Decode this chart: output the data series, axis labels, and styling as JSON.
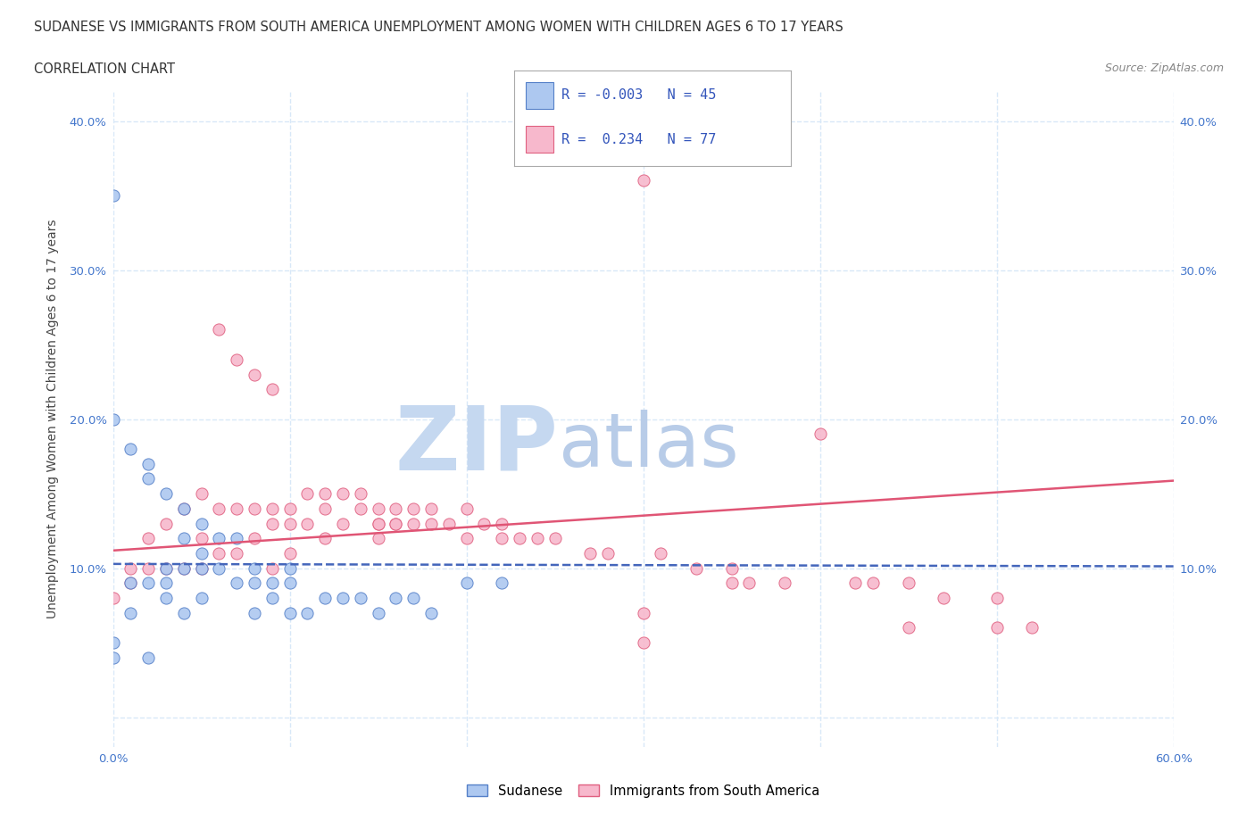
{
  "title": "SUDANESE VS IMMIGRANTS FROM SOUTH AMERICA UNEMPLOYMENT AMONG WOMEN WITH CHILDREN AGES 6 TO 17 YEARS",
  "subtitle": "CORRELATION CHART",
  "source": "Source: ZipAtlas.com",
  "ylabel": "Unemployment Among Women with Children Ages 6 to 17 years",
  "xlim": [
    0.0,
    0.6
  ],
  "ylim": [
    -0.02,
    0.42
  ],
  "xticks": [
    0.0,
    0.1,
    0.2,
    0.3,
    0.4,
    0.5,
    0.6
  ],
  "yticks": [
    0.0,
    0.1,
    0.2,
    0.3,
    0.4
  ],
  "xticklabels": [
    "0.0%",
    "",
    "",
    "",
    "",
    "",
    "60.0%"
  ],
  "yticklabels_left": [
    "",
    "10.0%",
    "20.0%",
    "30.0%",
    "40.0%"
  ],
  "yticklabels_right": [
    "",
    "10.0%",
    "20.0%",
    "30.0%",
    "40.0%"
  ],
  "sudanese_R": -0.003,
  "sudanese_N": 45,
  "southamerica_R": 0.234,
  "southamerica_N": 77,
  "blue_color": "#adc8f0",
  "pink_color": "#f7b8cc",
  "blue_edge_color": "#5580c8",
  "pink_edge_color": "#e06080",
  "blue_line_color": "#4466bb",
  "pink_line_color": "#e05575",
  "watermark_color": "#ccddf5",
  "background_color": "#ffffff",
  "grid_color": "#d8e8f8",
  "grid_style": "--",
  "sudanese_x": [
    0.0,
    0.0,
    0.0,
    0.01,
    0.01,
    0.01,
    0.02,
    0.02,
    0.02,
    0.02,
    0.03,
    0.03,
    0.03,
    0.03,
    0.04,
    0.04,
    0.04,
    0.04,
    0.05,
    0.05,
    0.05,
    0.05,
    0.06,
    0.06,
    0.07,
    0.07,
    0.08,
    0.08,
    0.08,
    0.09,
    0.09,
    0.1,
    0.1,
    0.1,
    0.11,
    0.12,
    0.13,
    0.14,
    0.15,
    0.16,
    0.17,
    0.18,
    0.2,
    0.22,
    0.0
  ],
  "sudanese_y": [
    0.35,
    0.05,
    0.04,
    0.18,
    0.09,
    0.07,
    0.17,
    0.16,
    0.09,
    0.04,
    0.15,
    0.1,
    0.09,
    0.08,
    0.14,
    0.12,
    0.1,
    0.07,
    0.13,
    0.11,
    0.1,
    0.08,
    0.12,
    0.1,
    0.12,
    0.09,
    0.1,
    0.09,
    0.07,
    0.09,
    0.08,
    0.1,
    0.09,
    0.07,
    0.07,
    0.08,
    0.08,
    0.08,
    0.07,
    0.08,
    0.08,
    0.07,
    0.09,
    0.09,
    0.2
  ],
  "southamerica_x": [
    0.0,
    0.01,
    0.01,
    0.02,
    0.02,
    0.03,
    0.03,
    0.04,
    0.04,
    0.05,
    0.05,
    0.05,
    0.06,
    0.06,
    0.06,
    0.07,
    0.07,
    0.07,
    0.08,
    0.08,
    0.08,
    0.09,
    0.09,
    0.09,
    0.09,
    0.1,
    0.1,
    0.1,
    0.11,
    0.11,
    0.12,
    0.12,
    0.12,
    0.13,
    0.13,
    0.14,
    0.14,
    0.15,
    0.15,
    0.15,
    0.15,
    0.16,
    0.16,
    0.16,
    0.17,
    0.17,
    0.18,
    0.18,
    0.19,
    0.2,
    0.2,
    0.21,
    0.22,
    0.22,
    0.23,
    0.24,
    0.25,
    0.27,
    0.28,
    0.3,
    0.31,
    0.33,
    0.35,
    0.35,
    0.36,
    0.38,
    0.4,
    0.42,
    0.43,
    0.45,
    0.47,
    0.5,
    0.3,
    0.45,
    0.5,
    0.52,
    0.3
  ],
  "southamerica_y": [
    0.08,
    0.1,
    0.09,
    0.12,
    0.1,
    0.13,
    0.1,
    0.14,
    0.1,
    0.15,
    0.12,
    0.1,
    0.26,
    0.14,
    0.11,
    0.24,
    0.14,
    0.11,
    0.23,
    0.14,
    0.12,
    0.22,
    0.14,
    0.13,
    0.1,
    0.14,
    0.13,
    0.11,
    0.15,
    0.13,
    0.15,
    0.14,
    0.12,
    0.15,
    0.13,
    0.15,
    0.14,
    0.14,
    0.13,
    0.13,
    0.12,
    0.14,
    0.13,
    0.13,
    0.14,
    0.13,
    0.14,
    0.13,
    0.13,
    0.14,
    0.12,
    0.13,
    0.13,
    0.12,
    0.12,
    0.12,
    0.12,
    0.11,
    0.11,
    0.36,
    0.11,
    0.1,
    0.09,
    0.1,
    0.09,
    0.09,
    0.19,
    0.09,
    0.09,
    0.09,
    0.08,
    0.08,
    0.07,
    0.06,
    0.06,
    0.06,
    0.05
  ]
}
